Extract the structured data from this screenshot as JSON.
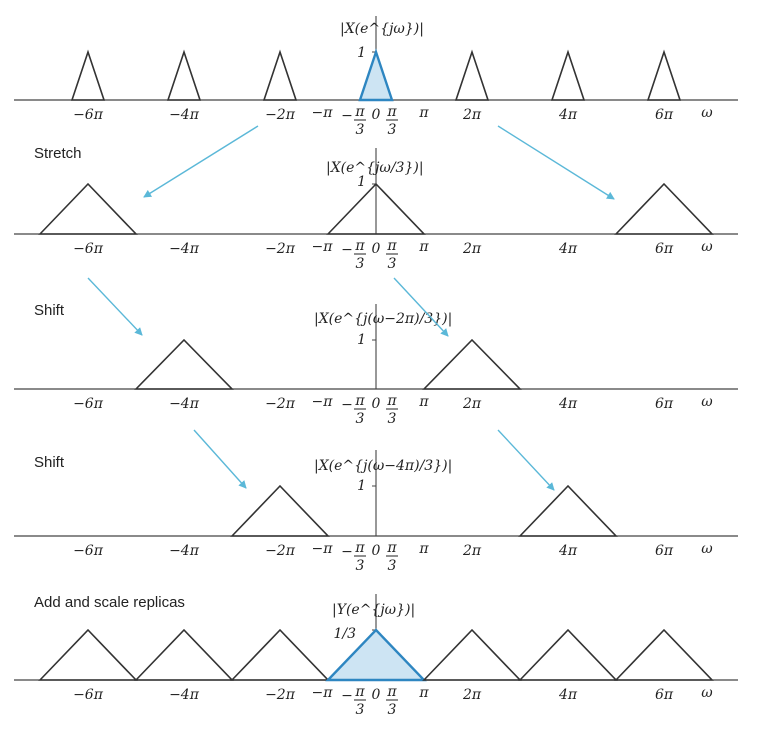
{
  "colors": {
    "axis": "#444444",
    "triangle": "#333333",
    "highlight_stroke": "#2e86c1",
    "highlight_fill": "#cde4f3",
    "arrow": "#5bb8d8"
  },
  "omega_label": "ω",
  "ticks": {
    "neg6pi": "−6π",
    "neg4pi": "−4π",
    "neg2pi": "−2π",
    "negpi": "−π",
    "neg_pi_over_3_num": "π",
    "neg_pi_over_3_den": "3",
    "neg_sign": "−",
    "zero": "0",
    "pi_over_3_num": "π",
    "pi_over_3_den": "3",
    "pi": "π",
    "pos2pi": "2π",
    "pos4pi": "4π",
    "pos6pi": "6π"
  },
  "panels": [
    {
      "label": "",
      "formula": "|X(e^{jω})|",
      "peak_label": "1"
    },
    {
      "label": "Stretch",
      "formula": "|X(e^{jω/3})|",
      "peak_label": "1"
    },
    {
      "label": "Shift",
      "formula": "|X(e^{j(ω−2π)/3})|",
      "peak_label": "1"
    },
    {
      "label": "Shift",
      "formula": "|X(e^{j(ω−4π)/3})|",
      "peak_label": "1"
    },
    {
      "label": "Add and scale replicas",
      "formula": "|Y(e^{jω})|",
      "peak_label": "1/3"
    }
  ]
}
